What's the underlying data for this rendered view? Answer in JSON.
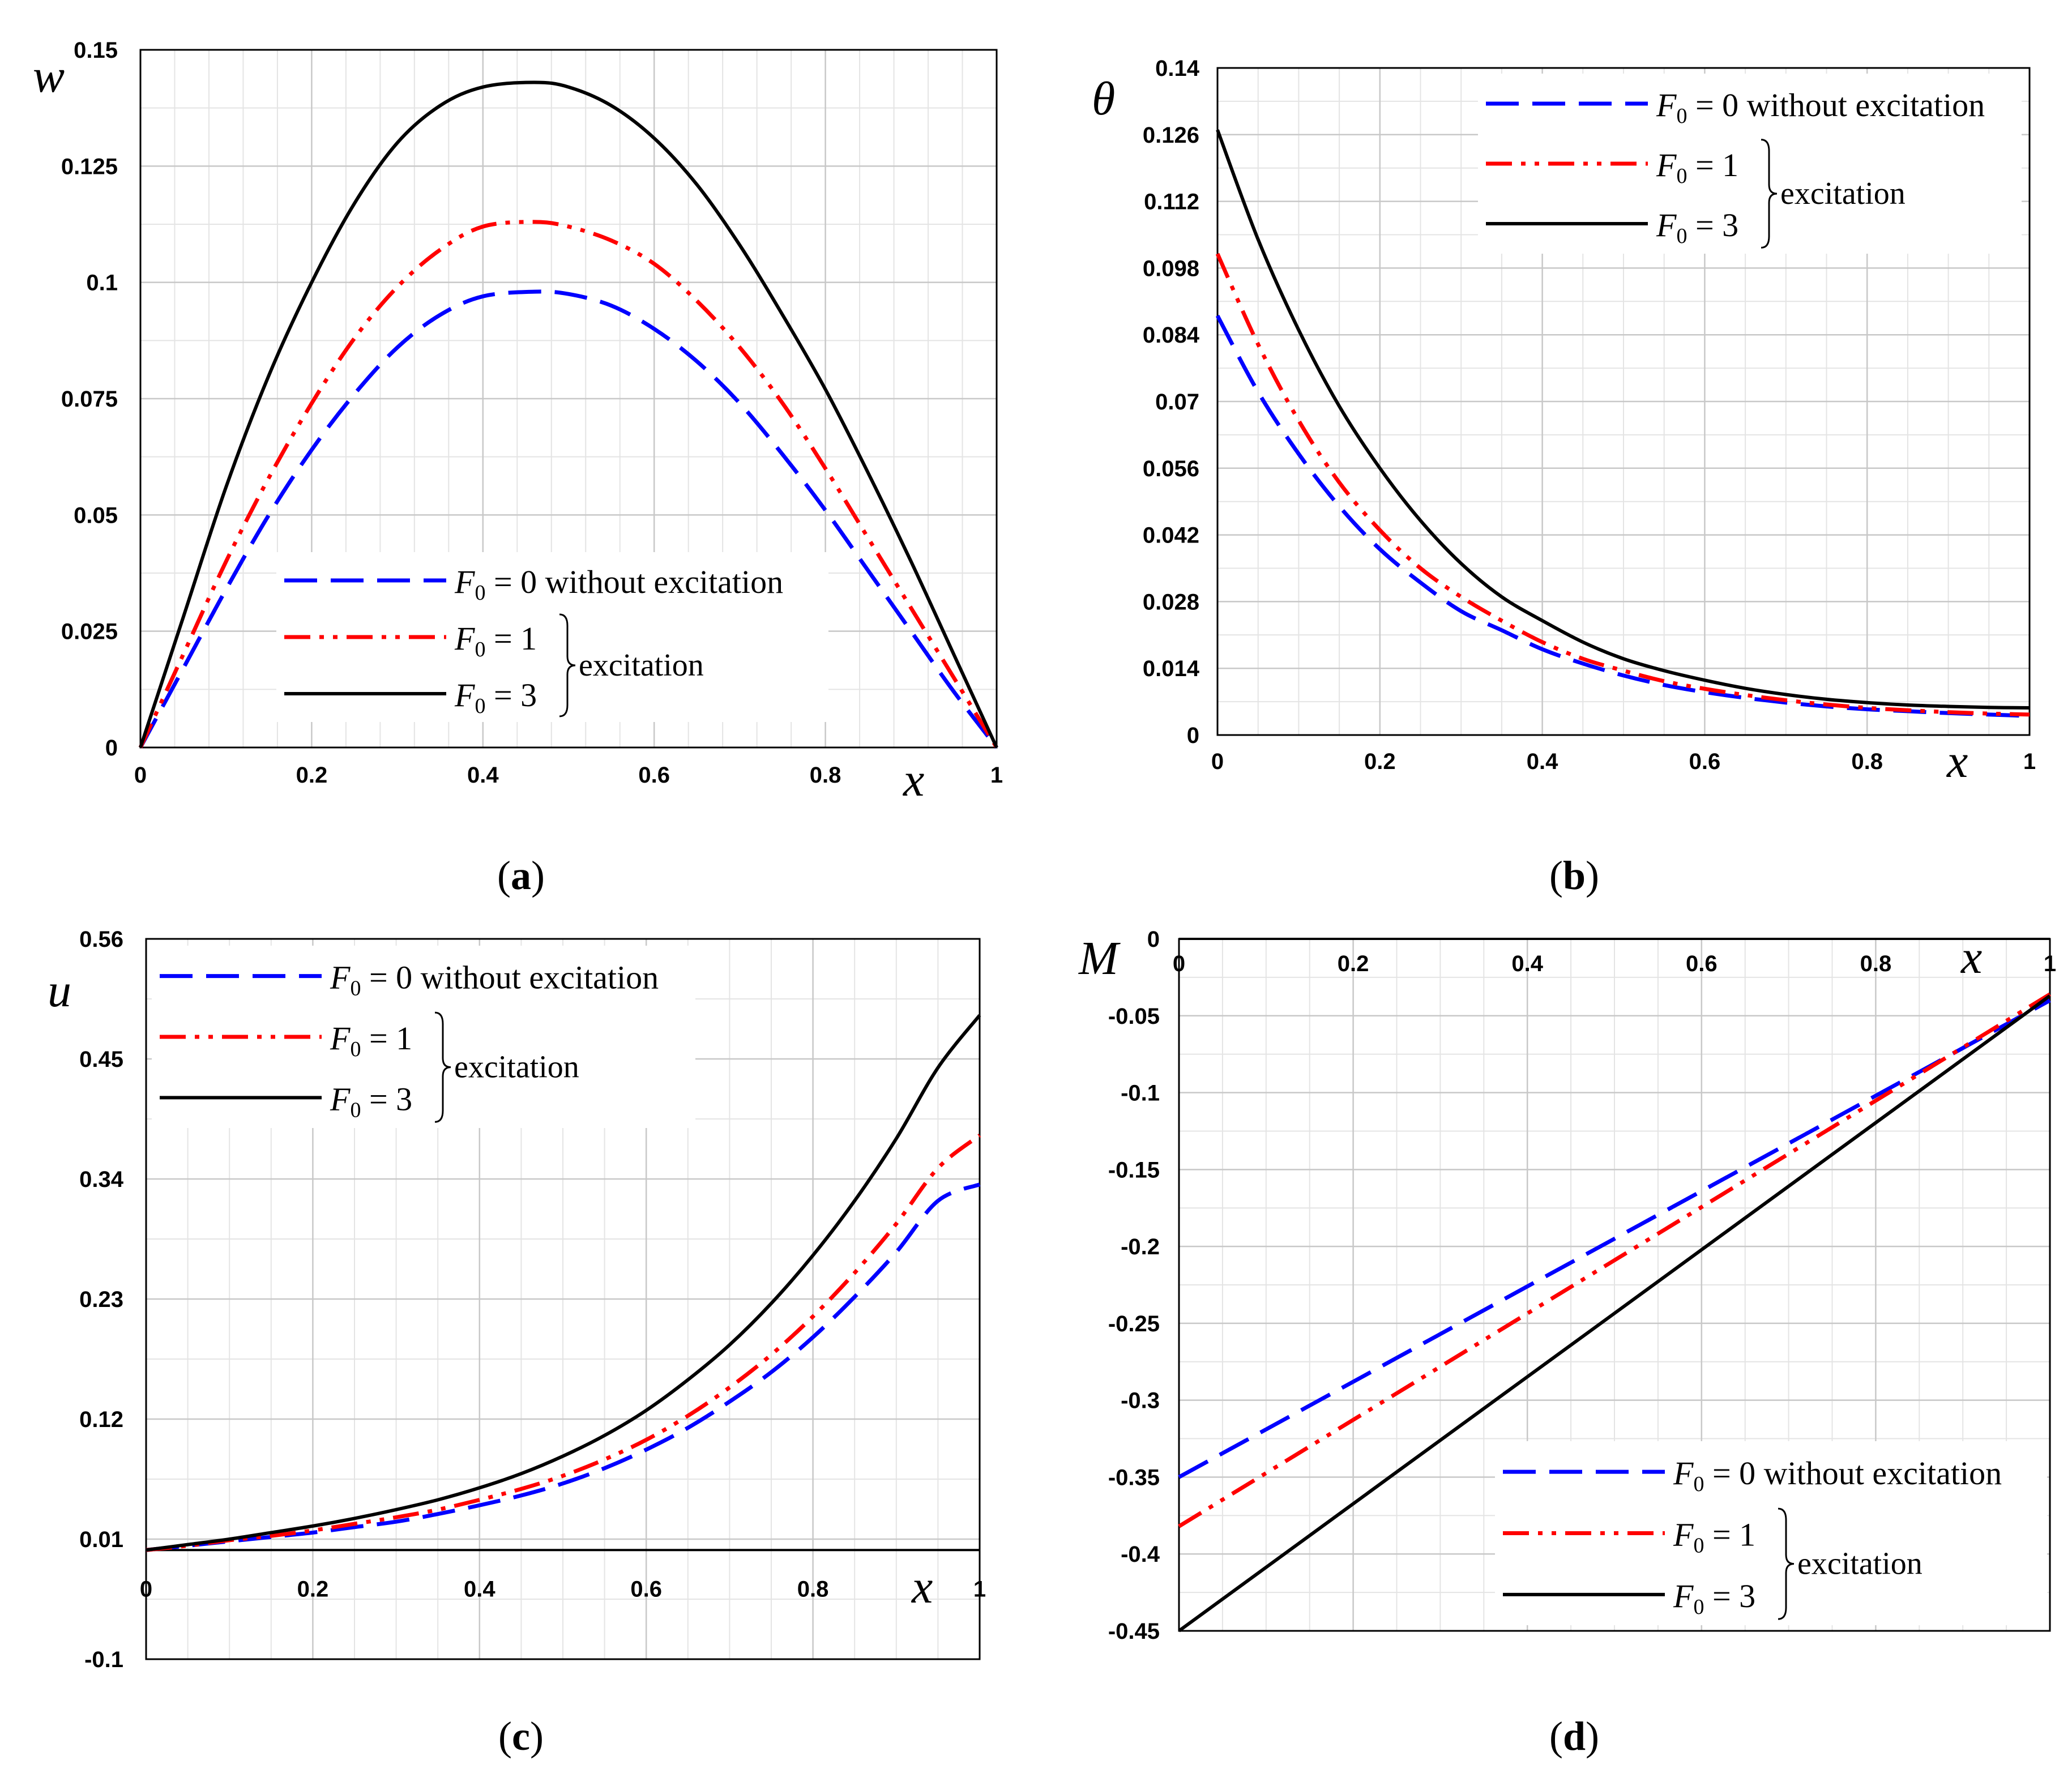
{
  "colors": {
    "blue": "#0000ff",
    "red": "#ff0000",
    "black": "#000000",
    "grid": "#c8c8c8",
    "minor_grid": "#e4e4e4"
  },
  "legend_text": {
    "f_symbol": "F",
    "f_sub": "0",
    "excitation": "excitation",
    "labels": [
      " = 0 without excitation",
      " = 1",
      " = 3"
    ]
  },
  "chart_data": [
    {
      "type": "line",
      "panel_label": "a",
      "ylabel": "w",
      "xlabel": "x",
      "xlim": [
        0,
        1
      ],
      "ylim": [
        0,
        0.15
      ],
      "xticks": [
        "0",
        "0.2",
        "0.4",
        "0.6",
        "0.8",
        "1"
      ],
      "yticks": [
        "0",
        "0.025",
        "0.05",
        "0.075",
        "0.1",
        "0.125",
        "0.15"
      ],
      "x": [
        0,
        0.05,
        0.1,
        0.15,
        0.2,
        0.25,
        0.3,
        0.35,
        0.4,
        0.46,
        0.5,
        0.55,
        0.6,
        0.65,
        0.7,
        0.75,
        0.8,
        0.85,
        0.9,
        0.95,
        1
      ],
      "series": [
        {
          "name": "F0 = 0 without excitation",
          "values": [
            0,
            0.017,
            0.034,
            0.05,
            0.064,
            0.076,
            0.086,
            0.093,
            0.097,
            0.098,
            0.0975,
            0.095,
            0.09,
            0.083,
            0.074,
            0.063,
            0.051,
            0.038,
            0.025,
            0.012,
            0
          ]
        },
        {
          "name": "F0 = 1",
          "values": [
            0,
            0.02,
            0.04,
            0.058,
            0.074,
            0.088,
            0.099,
            0.107,
            0.112,
            0.113,
            0.112,
            0.109,
            0.104,
            0.096,
            0.086,
            0.074,
            0.06,
            0.045,
            0.03,
            0.015,
            0
          ]
        },
        {
          "name": "F0 = 3",
          "values": [
            0,
            0.028,
            0.056,
            0.08,
            0.1,
            0.117,
            0.13,
            0.138,
            0.142,
            0.143,
            0.142,
            0.138,
            0.131,
            0.121,
            0.108,
            0.093,
            0.077,
            0.059,
            0.04,
            0.02,
            0
          ]
        }
      ],
      "styles": [
        "dashed",
        "dashdotdot",
        "solid"
      ],
      "legend_position": "bottom-center"
    },
    {
      "type": "line",
      "panel_label": "b",
      "ylabel": "θ",
      "xlabel": "x",
      "xlim": [
        0,
        1
      ],
      "ylim": [
        0,
        0.14
      ],
      "xticks": [
        "0",
        "0.2",
        "0.4",
        "0.6",
        "0.8",
        "1"
      ],
      "yticks": [
        "0",
        "0.014",
        "0.028",
        "0.042",
        "0.056",
        "0.07",
        "0.084",
        "0.098",
        "0.112",
        "0.126",
        "0.14"
      ],
      "x": [
        0,
        0.05,
        0.1,
        0.15,
        0.2,
        0.25,
        0.3,
        0.35,
        0.4,
        0.45,
        0.5,
        0.55,
        0.6,
        0.65,
        0.7,
        0.75,
        0.8,
        0.85,
        0.9,
        0.95,
        1
      ],
      "series": [
        {
          "name": "F0 = 0 without excitation",
          "values": [
            0.088,
            0.072,
            0.059,
            0.048,
            0.039,
            0.032,
            0.026,
            0.022,
            0.018,
            0.015,
            0.0125,
            0.0105,
            0.009,
            0.0078,
            0.0068,
            0.006,
            0.0054,
            0.005,
            0.0046,
            0.0043,
            0.004
          ]
        },
        {
          "name": "F0 = 1",
          "values": [
            0.101,
            0.082,
            0.066,
            0.053,
            0.043,
            0.035,
            0.029,
            0.024,
            0.0195,
            0.016,
            0.0135,
            0.0113,
            0.0097,
            0.0084,
            0.0073,
            0.0064,
            0.0057,
            0.0052,
            0.0048,
            0.0045,
            0.0043
          ]
        },
        {
          "name": "F0 = 3",
          "values": [
            0.127,
            0.104,
            0.085,
            0.069,
            0.056,
            0.045,
            0.036,
            0.029,
            0.024,
            0.0195,
            0.016,
            0.0135,
            0.0115,
            0.0098,
            0.0085,
            0.0075,
            0.0068,
            0.0063,
            0.006,
            0.0058,
            0.0057
          ]
        }
      ],
      "styles": [
        "dashed",
        "dashdotdot",
        "solid"
      ],
      "legend_position": "top-right"
    },
    {
      "type": "line",
      "panel_label": "c",
      "ylabel": "u",
      "xlabel": "x",
      "xlim": [
        0,
        1
      ],
      "ylim": [
        -0.1,
        0.56
      ],
      "xticks": [
        "0",
        "0.2",
        "0.4",
        "0.6",
        "0.8",
        "1"
      ],
      "yticks": [
        "-0.1",
        "0.01",
        "0.12",
        "0.23",
        "0.34",
        "0.45",
        "0.56"
      ],
      "x": [
        0,
        0.05,
        0.1,
        0.15,
        0.2,
        0.25,
        0.3,
        0.35,
        0.4,
        0.45,
        0.5,
        0.55,
        0.6,
        0.65,
        0.7,
        0.75,
        0.8,
        0.85,
        0.9,
        0.95,
        1
      ],
      "series": [
        {
          "name": "F0 = 0 without excitation",
          "values": [
            0,
            0.004,
            0.008,
            0.012,
            0.016,
            0.021,
            0.026,
            0.033,
            0.041,
            0.05,
            0.061,
            0.075,
            0.092,
            0.112,
            0.136,
            0.163,
            0.195,
            0.232,
            0.273,
            0.32,
            0.335
          ]
        },
        {
          "name": "F0 = 1",
          "values": [
            0,
            0.004,
            0.009,
            0.013,
            0.018,
            0.024,
            0.03,
            0.037,
            0.046,
            0.056,
            0.068,
            0.083,
            0.101,
            0.123,
            0.149,
            0.179,
            0.214,
            0.254,
            0.299,
            0.35,
            0.38
          ]
        },
        {
          "name": "F0 = 3",
          "values": [
            0,
            0.005,
            0.01,
            0.016,
            0.022,
            0.029,
            0.037,
            0.046,
            0.057,
            0.07,
            0.086,
            0.105,
            0.128,
            0.156,
            0.188,
            0.226,
            0.27,
            0.32,
            0.377,
            0.442,
            0.49
          ]
        }
      ],
      "styles": [
        "dashed",
        "dashdotdot",
        "solid"
      ],
      "legend_position": "top-left"
    },
    {
      "type": "line",
      "panel_label": "d",
      "ylabel": "M",
      "xlabel": "x",
      "xlim": [
        0,
        1
      ],
      "ylim": [
        -0.45,
        0
      ],
      "xticks": [
        "0",
        "0.2",
        "0.4",
        "0.6",
        "0.8",
        "1"
      ],
      "yticks": [
        "0",
        "-0.05",
        "-0.1",
        "-0.15",
        "-0.2",
        "-0.25",
        "-0.3",
        "-0.35",
        "-0.4",
        "-0.45"
      ],
      "x": [
        0,
        0.25,
        0.5,
        0.75,
        1
      ],
      "series": [
        {
          "name": "F0 = 0 without excitation",
          "values": [
            -0.35,
            -0.2725,
            -0.195,
            -0.1175,
            -0.04
          ]
        },
        {
          "name": "F0 = 1",
          "values": [
            -0.382,
            -0.2955,
            -0.209,
            -0.1225,
            -0.036
          ]
        },
        {
          "name": "F0 = 3",
          "values": [
            -0.45,
            -0.3467,
            -0.2435,
            -0.1402,
            -0.037
          ]
        }
      ],
      "styles": [
        "dashed",
        "dashdotdot",
        "solid"
      ],
      "legend_position": "bottom-right"
    }
  ]
}
